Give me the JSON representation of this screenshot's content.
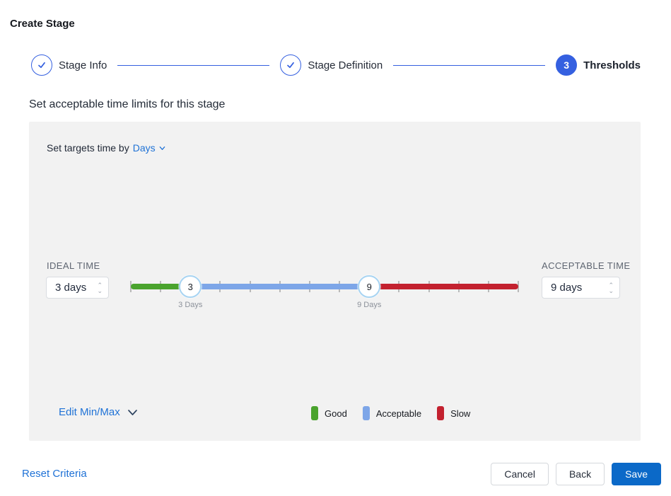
{
  "page": {
    "title": "Create Stage"
  },
  "colors": {
    "accent_blue": "#3560E0",
    "link_blue": "#1F72D6",
    "save_blue": "#0B69C8",
    "good_green": "#4AA32D",
    "acceptable_blue": "#7DA6E8",
    "slow_red": "#C3212F"
  },
  "stepper": {
    "steps": [
      {
        "label": "Stage Info",
        "state": "complete"
      },
      {
        "label": "Stage Definition",
        "state": "complete"
      },
      {
        "label": "Thresholds",
        "state": "current",
        "number": "3"
      }
    ]
  },
  "section": {
    "heading": "Set acceptable time limits for this stage"
  },
  "panel": {
    "target_time_label": "Set targets time by",
    "target_time_value": "Days",
    "ideal": {
      "label": "IDEAL TIME",
      "value": "3 days"
    },
    "acceptable": {
      "label": "ACCEPTABLE TIME",
      "value": "9 days"
    },
    "slider": {
      "min_day": 1,
      "max_day": 14,
      "ideal_day": 3,
      "acceptable_day": 9,
      "handle1": {
        "value": "3",
        "label": "3 Days"
      },
      "handle2": {
        "value": "9",
        "label": "9 Days"
      }
    },
    "edit_minmax_label": "Edit Min/Max",
    "legend": [
      {
        "label": "Good",
        "color_key": "good_green"
      },
      {
        "label": "Acceptable",
        "color_key": "acceptable_blue"
      },
      {
        "label": "Slow",
        "color_key": "slow_red"
      }
    ]
  },
  "footer": {
    "reset_label": "Reset Criteria",
    "cancel_label": "Cancel",
    "back_label": "Back",
    "save_label": "Save"
  }
}
